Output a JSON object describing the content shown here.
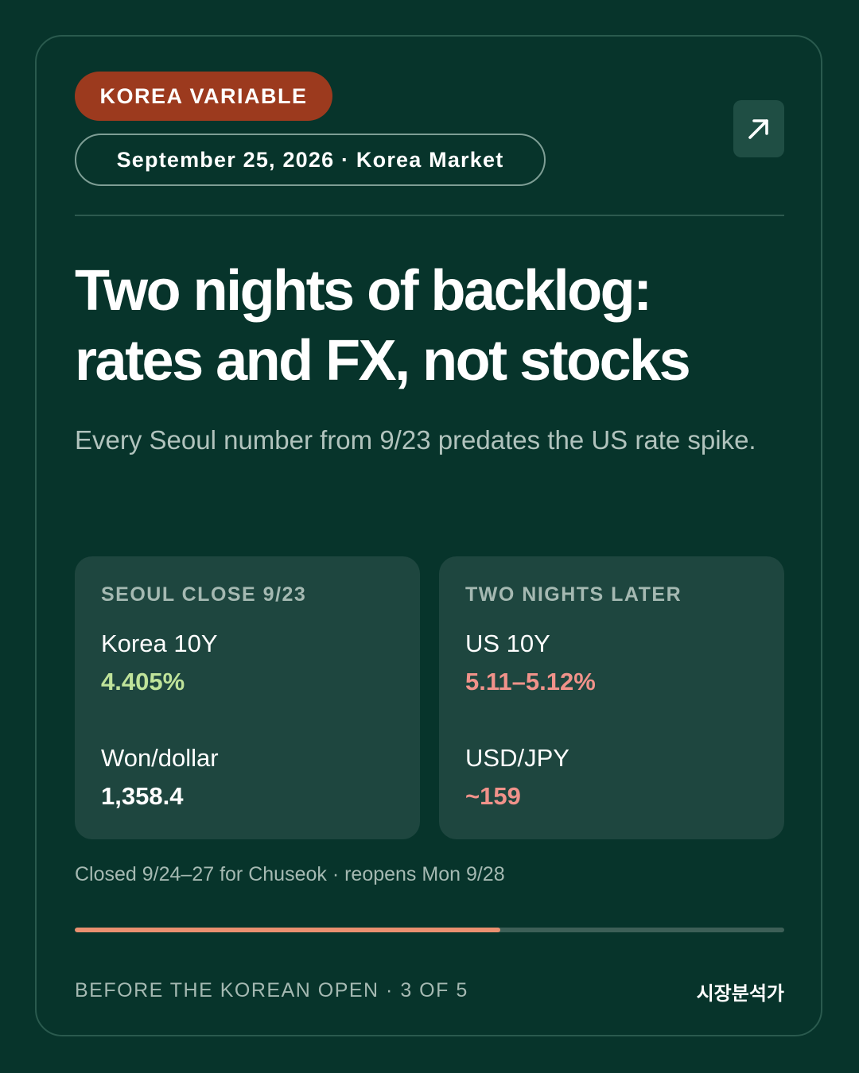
{
  "card": {
    "badge": "KOREA VARIABLE",
    "date_line": "September 25, 2026 · Korea Market",
    "open_icon": "arrow-up-right-icon",
    "headline": "Two nights of backlog: rates and FX, not stocks",
    "subhead": "Every Seoul number from 9/23 predates the US rate spike."
  },
  "panels": {
    "left": {
      "heading": "SEOUL CLOSE 9/23",
      "metrics": [
        {
          "label": "Korea 10Y",
          "value": "4.405%",
          "color": "#bfe39a"
        },
        {
          "label": "Won/dollar",
          "value": "1,358.4",
          "color": "#ffffff"
        }
      ]
    },
    "right": {
      "heading": "TWO NIGHTS LATER",
      "metrics": [
        {
          "label": "US 10Y",
          "value": "5.11–5.12%",
          "color": "#f0928a"
        },
        {
          "label": "USD/JPY",
          "value": "~159",
          "color": "#f0928a"
        }
      ]
    }
  },
  "footnote": "Closed 9/24–27 for Chuseok · reopens Mon 9/28",
  "progress": {
    "current": 3,
    "total": 5,
    "fill_fraction": 0.6,
    "fill_color": "#ea9070"
  },
  "footer": {
    "series_label": "BEFORE THE KOREAN OPEN · 3 OF 5",
    "brand": "시장분석가"
  },
  "colors": {
    "background": "#07342b",
    "badge": "#9c3a1e",
    "panel": "#1e463f"
  }
}
